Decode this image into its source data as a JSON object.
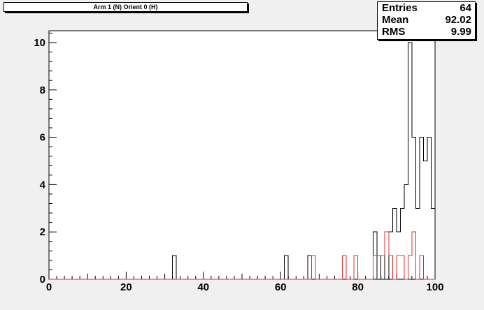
{
  "title": "Arm 1 (N) Orient 0 (H)",
  "stats": [
    {
      "label": "Entries",
      "value": "64"
    },
    {
      "label": "Mean",
      "value": "92.02"
    },
    {
      "label": "RMS",
      "value": "9.99"
    }
  ],
  "chart_data": {
    "type": "histogram",
    "xlim": [
      0,
      100
    ],
    "ylim": [
      0,
      10.5
    ],
    "bin_width": 1,
    "x_ticks": [
      "0",
      "20",
      "40",
      "60",
      "80",
      "100"
    ],
    "y_ticks": [
      "0",
      "2",
      "4",
      "6",
      "8",
      "10"
    ],
    "grid": false,
    "series": [
      {
        "color": "#000000",
        "bins": [
          {
            "x": 32,
            "y": 1
          },
          {
            "x": 61,
            "y": 1
          },
          {
            "x": 67,
            "y": 1
          },
          {
            "x": 84,
            "y": 2
          },
          {
            "x": 86,
            "y": 1
          },
          {
            "x": 88,
            "y": 2
          },
          {
            "x": 89,
            "y": 3
          },
          {
            "x": 90,
            "y": 2
          },
          {
            "x": 91,
            "y": 3
          },
          {
            "x": 92,
            "y": 4
          },
          {
            "x": 93,
            "y": 10
          },
          {
            "x": 94,
            "y": 6
          },
          {
            "x": 95,
            "y": 3
          },
          {
            "x": 96,
            "y": 6
          },
          {
            "x": 97,
            "y": 5
          },
          {
            "x": 98,
            "y": 6
          },
          {
            "x": 99,
            "y": 3
          }
        ]
      },
      {
        "color": "#e8282e",
        "bins": [
          {
            "x": 68,
            "y": 1
          },
          {
            "x": 76,
            "y": 1
          },
          {
            "x": 79,
            "y": 1
          },
          {
            "x": 84,
            "y": 1
          },
          {
            "x": 85,
            "y": 1
          },
          {
            "x": 86,
            "y": 1
          },
          {
            "x": 87,
            "y": 2
          },
          {
            "x": 88,
            "y": 1
          },
          {
            "x": 90,
            "y": 1
          },
          {
            "x": 91,
            "y": 1
          },
          {
            "x": 93,
            "y": 1
          },
          {
            "x": 94,
            "y": 2
          },
          {
            "x": 96,
            "y": 1
          }
        ]
      }
    ]
  }
}
